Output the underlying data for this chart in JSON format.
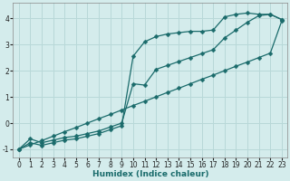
{
  "title": "",
  "xlabel": "Humidex (Indice chaleur)",
  "ylabel": "",
  "bg_color": "#d4ecec",
  "grid_color": "#b8d8d8",
  "line_color": "#1a6b6b",
  "xlim": [
    -0.5,
    23.5
  ],
  "ylim": [
    -1.3,
    4.6
  ],
  "xticks": [
    0,
    1,
    2,
    3,
    4,
    5,
    6,
    7,
    8,
    9,
    10,
    11,
    12,
    13,
    14,
    15,
    16,
    17,
    18,
    19,
    20,
    21,
    22,
    23
  ],
  "yticks": [
    -1,
    0,
    1,
    2,
    3,
    4
  ],
  "line1_x": [
    0,
    1,
    2,
    3,
    4,
    5,
    6,
    7,
    8,
    9,
    10,
    11,
    12,
    13,
    14,
    15,
    16,
    17,
    18,
    19,
    20,
    21,
    22,
    23
  ],
  "line1_y": [
    -1.0,
    -0.83,
    -0.67,
    -0.5,
    -0.33,
    -0.17,
    0.0,
    0.17,
    0.33,
    0.5,
    0.67,
    0.83,
    1.0,
    1.17,
    1.33,
    1.5,
    1.67,
    1.83,
    2.0,
    2.17,
    2.33,
    2.5,
    2.67,
    3.9
  ],
  "line2_x": [
    0,
    1,
    2,
    3,
    4,
    5,
    6,
    7,
    8,
    9,
    10,
    11,
    12,
    13,
    14,
    15,
    16,
    17,
    18,
    19,
    20,
    21,
    22,
    23
  ],
  "line2_y": [
    -1.0,
    -0.75,
    -0.85,
    -0.75,
    -0.65,
    -0.6,
    -0.5,
    -0.4,
    -0.25,
    -0.1,
    2.55,
    3.1,
    3.3,
    3.4,
    3.45,
    3.5,
    3.5,
    3.55,
    4.05,
    4.15,
    4.2,
    4.15,
    4.15,
    3.95
  ],
  "line3_x": [
    0,
    1,
    2,
    3,
    4,
    5,
    6,
    7,
    8,
    9,
    10,
    11,
    12,
    13,
    14,
    15,
    16,
    17,
    18,
    19,
    20,
    21,
    22,
    23
  ],
  "line3_y": [
    -1.0,
    -0.6,
    -0.75,
    -0.65,
    -0.55,
    -0.5,
    -0.4,
    -0.3,
    -0.15,
    0.0,
    1.5,
    1.45,
    2.05,
    2.2,
    2.35,
    2.5,
    2.65,
    2.8,
    3.25,
    3.55,
    3.85,
    4.1,
    4.15,
    3.95
  ]
}
